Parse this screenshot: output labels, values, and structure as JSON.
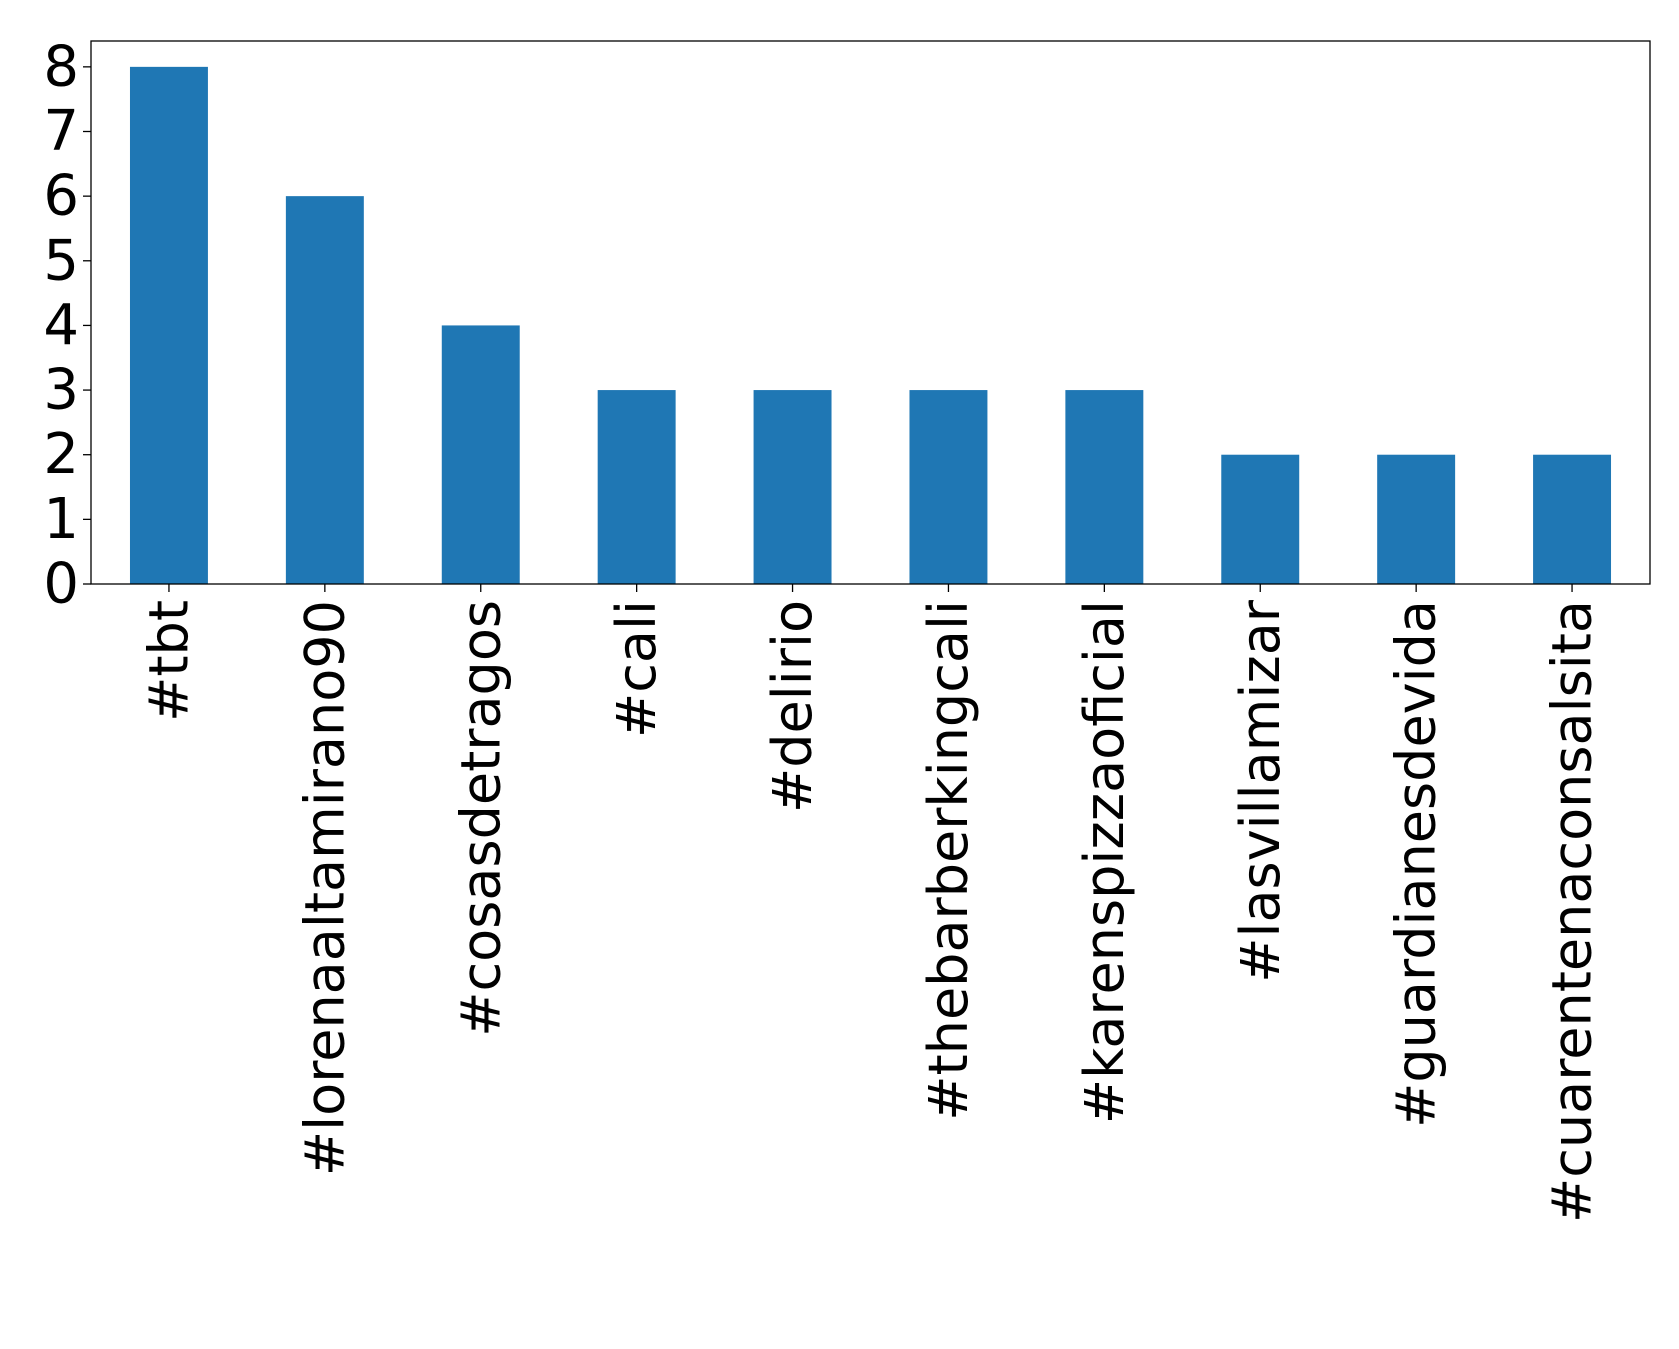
{
  "chart_data": {
    "type": "bar",
    "title": "",
    "xlabel": "",
    "ylabel": "",
    "categories": [
      "#tbt",
      "#lorenaaltamirano90",
      "#cosasdetragos",
      "#cali",
      "#delirio",
      "#thebarberkingcali",
      "#karenspizzaoficial",
      "#lasvillamizar",
      "#guardianesdevida",
      "#cuarentenaconsalsita"
    ],
    "values": [
      8,
      6,
      4,
      3,
      3,
      3,
      3,
      2,
      2,
      2
    ],
    "ylim": [
      0,
      8.4
    ],
    "yticks": [
      0,
      1,
      2,
      3,
      4,
      5,
      6,
      7,
      8
    ],
    "bar_color": "#1f77b4",
    "grid": false,
    "legend": false
  }
}
